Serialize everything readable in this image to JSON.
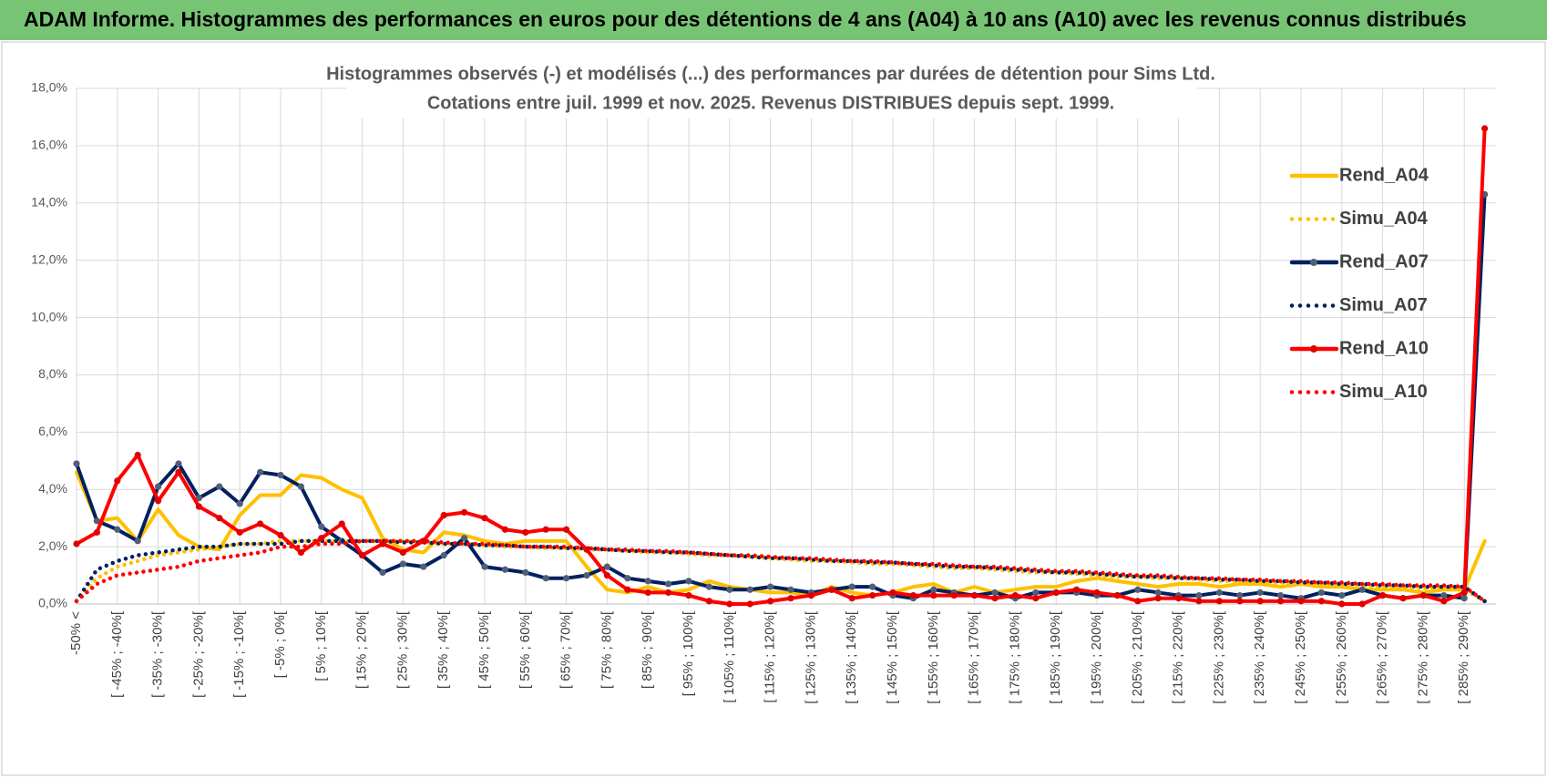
{
  "header": {
    "title": "ADAM Informe. Histogrammes des performances en euros pour des détentions de 4 ans (A04) à 10 ans (A10) avec les revenus connus distribués"
  },
  "chart_data": {
    "type": "line",
    "title": "Histogrammes observés (-) et modélisés (...) des performances par durées de détention pour Sims Ltd.",
    "subtitle": "Cotations entre juil. 1999 et nov. 2025. Revenus DISTRIBUES depuis sept. 1999.",
    "categories": [
      "-50% <",
      null,
      "[ -45% ; -40%[",
      null,
      "[ -35% ; -30%[",
      null,
      "[ -25% ; -20%[",
      null,
      "[ -15% ; -10%[",
      null,
      "[ -5% ; 0%[",
      null,
      "[ 5% ; 10%[",
      null,
      "[ 15% ; 20%[",
      null,
      "[ 25% ; 30%[",
      null,
      "[ 35% ; 40%[",
      null,
      "[ 45% ; 50%[",
      null,
      "[ 55% ; 60%[",
      null,
      "[ 65% ; 70%[",
      null,
      "[ 75% ; 80%[",
      null,
      "[ 85% ; 90%[",
      null,
      "[ 95% ; 100%[",
      null,
      "[ 105% ; 110%[",
      null,
      "[ 115% ; 120%[",
      null,
      "[ 125% ; 130%[",
      null,
      "[ 135% ; 140%[",
      null,
      "[ 145% ; 150%[",
      null,
      "[ 155% ; 160%[",
      null,
      "[ 165% ; 170%[",
      null,
      "[ 175% ; 180%[",
      null,
      "[ 185% ; 190%[",
      null,
      "[ 195% ; 200%[",
      null,
      "[ 205% ; 210%[",
      null,
      "[ 215% ; 220%[",
      null,
      "[ 225% ; 230%[",
      null,
      "[ 235% ; 240%[",
      null,
      "[ 245% ; 250%[",
      null,
      "[ 255% ; 260%[",
      null,
      "[ 265% ; 270%[",
      null,
      "[ 275% ; 280%[",
      null,
      "[ 285% ; 290%[",
      null
    ],
    "series": [
      {
        "name": "Rend_A04",
        "color": "#FFC000",
        "dash": "solid",
        "markers": false,
        "values": [
          4.6,
          2.9,
          3.0,
          2.2,
          3.3,
          2.4,
          2.0,
          1.9,
          3.1,
          3.8,
          3.8,
          4.5,
          4.4,
          4.0,
          3.7,
          2.3,
          1.9,
          1.8,
          2.5,
          2.4,
          2.2,
          2.1,
          2.2,
          2.2,
          2.2,
          1.3,
          0.5,
          0.4,
          0.6,
          0.4,
          0.5,
          0.8,
          0.6,
          0.5,
          0.4,
          0.4,
          0.3,
          0.6,
          0.4,
          0.3,
          0.4,
          0.6,
          0.7,
          0.4,
          0.6,
          0.4,
          0.5,
          0.6,
          0.6,
          0.8,
          0.9,
          0.8,
          0.7,
          0.6,
          0.7,
          0.7,
          0.6,
          0.7,
          0.7,
          0.6,
          0.7,
          0.6,
          0.6,
          0.5,
          0.5,
          0.5,
          0.4,
          0.5,
          0.5,
          2.2
        ]
      },
      {
        "name": "Simu_A04",
        "color": "#FFC000",
        "dash": "dotted",
        "markers": false,
        "values": [
          0.1,
          0.9,
          1.3,
          1.5,
          1.7,
          1.8,
          1.9,
          2.0,
          2.1,
          2.1,
          2.2,
          2.2,
          2.2,
          2.2,
          2.2,
          2.2,
          2.2,
          2.15,
          2.1,
          2.1,
          2.05,
          2.0,
          2.0,
          1.95,
          1.95,
          1.9,
          1.9,
          1.85,
          1.8,
          1.8,
          1.75,
          1.7,
          1.7,
          1.65,
          1.6,
          1.55,
          1.5,
          1.5,
          1.45,
          1.4,
          1.4,
          1.35,
          1.3,
          1.25,
          1.25,
          1.2,
          1.15,
          1.1,
          1.1,
          1.05,
          1.0,
          0.95,
          0.95,
          0.9,
          0.9,
          0.85,
          0.8,
          0.8,
          0.75,
          0.75,
          0.7,
          0.7,
          0.65,
          0.65,
          0.6,
          0.6,
          0.55,
          0.55,
          0.5,
          0.1
        ]
      },
      {
        "name": "Rend_A07",
        "color": "#002060",
        "marker_color": "#4F5F78",
        "dash": "solid",
        "markers": true,
        "values": [
          4.9,
          2.9,
          2.6,
          2.2,
          4.1,
          4.9,
          3.7,
          4.1,
          3.5,
          4.6,
          4.5,
          4.1,
          2.7,
          2.2,
          1.7,
          1.1,
          1.4,
          1.3,
          1.7,
          2.3,
          1.3,
          1.2,
          1.1,
          0.9,
          0.9,
          1.0,
          1.3,
          0.9,
          0.8,
          0.7,
          0.8,
          0.6,
          0.5,
          0.5,
          0.6,
          0.5,
          0.4,
          0.5,
          0.6,
          0.6,
          0.3,
          0.2,
          0.5,
          0.4,
          0.3,
          0.4,
          0.2,
          0.4,
          0.4,
          0.4,
          0.3,
          0.3,
          0.5,
          0.4,
          0.3,
          0.3,
          0.4,
          0.3,
          0.4,
          0.3,
          0.2,
          0.4,
          0.3,
          0.5,
          0.3,
          0.2,
          0.3,
          0.3,
          0.2,
          14.3
        ]
      },
      {
        "name": "Simu_A07",
        "color": "#002060",
        "dash": "dotted",
        "markers": false,
        "values": [
          0.1,
          1.2,
          1.5,
          1.7,
          1.8,
          1.9,
          2.0,
          2.0,
          2.1,
          2.1,
          2.1,
          2.2,
          2.2,
          2.2,
          2.2,
          2.2,
          2.15,
          2.15,
          2.1,
          2.1,
          2.05,
          2.05,
          2.0,
          2.0,
          1.95,
          1.95,
          1.9,
          1.85,
          1.85,
          1.8,
          1.8,
          1.75,
          1.7,
          1.65,
          1.6,
          1.6,
          1.55,
          1.5,
          1.5,
          1.45,
          1.45,
          1.4,
          1.35,
          1.3,
          1.3,
          1.25,
          1.2,
          1.15,
          1.1,
          1.1,
          1.05,
          1.0,
          0.95,
          0.95,
          0.9,
          0.9,
          0.85,
          0.85,
          0.8,
          0.8,
          0.75,
          0.75,
          0.7,
          0.7,
          0.65,
          0.65,
          0.6,
          0.6,
          0.6,
          0.1
        ]
      },
      {
        "name": "Rend_A10",
        "color": "#FF0000",
        "marker_color": "#E00000",
        "dash": "solid",
        "markers": true,
        "values": [
          2.1,
          2.5,
          4.3,
          5.2,
          3.6,
          4.6,
          3.4,
          3.0,
          2.5,
          2.8,
          2.4,
          1.8,
          2.3,
          2.8,
          1.7,
          2.1,
          1.8,
          2.2,
          3.1,
          3.2,
          3.0,
          2.6,
          2.5,
          2.6,
          2.6,
          1.9,
          1.0,
          0.5,
          0.4,
          0.4,
          0.3,
          0.1,
          0.0,
          0.0,
          0.1,
          0.2,
          0.3,
          0.5,
          0.2,
          0.3,
          0.4,
          0.3,
          0.3,
          0.3,
          0.3,
          0.2,
          0.3,
          0.2,
          0.4,
          0.5,
          0.4,
          0.3,
          0.1,
          0.2,
          0.2,
          0.1,
          0.1,
          0.1,
          0.1,
          0.1,
          0.1,
          0.1,
          0.0,
          0.0,
          0.3,
          0.2,
          0.3,
          0.1,
          0.4,
          16.6
        ]
      },
      {
        "name": "Simu_A10",
        "color": "#FF0000",
        "dash": "dotted",
        "markers": false,
        "values": [
          0.1,
          0.7,
          1.0,
          1.1,
          1.2,
          1.3,
          1.5,
          1.6,
          1.7,
          1.8,
          2.0,
          2.0,
          2.1,
          2.1,
          2.2,
          2.2,
          2.2,
          2.2,
          2.15,
          2.1,
          2.1,
          2.05,
          2.0,
          2.0,
          2.0,
          1.95,
          1.9,
          1.9,
          1.85,
          1.85,
          1.8,
          1.75,
          1.7,
          1.7,
          1.65,
          1.6,
          1.6,
          1.55,
          1.5,
          1.5,
          1.45,
          1.4,
          1.4,
          1.35,
          1.3,
          1.3,
          1.25,
          1.2,
          1.15,
          1.15,
          1.1,
          1.05,
          1.0,
          1.0,
          0.95,
          0.9,
          0.9,
          0.85,
          0.85,
          0.8,
          0.8,
          0.75,
          0.75,
          0.7,
          0.7,
          0.65,
          0.65,
          0.65,
          0.6,
          0.1
        ]
      }
    ],
    "ylim": [
      0,
      18
    ],
    "yticks": [
      {
        "value": 0,
        "label": "0,0%"
      },
      {
        "value": 2,
        "label": "2,0%"
      },
      {
        "value": 4,
        "label": "4,0%"
      },
      {
        "value": 6,
        "label": "6,0%"
      },
      {
        "value": 8,
        "label": "8,0%"
      },
      {
        "value": 10,
        "label": "10,0%"
      },
      {
        "value": 12,
        "label": "12,0%"
      },
      {
        "value": 14,
        "label": "14,0%"
      },
      {
        "value": 16,
        "label": "16,0%"
      },
      {
        "value": 18,
        "label": "18,0%"
      }
    ],
    "grid": true,
    "legend": "right"
  }
}
